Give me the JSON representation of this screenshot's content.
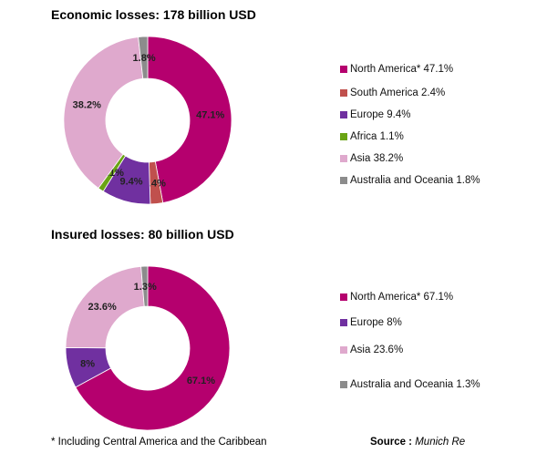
{
  "chart_data": [
    {
      "type": "pie",
      "title": "Economic losses: 178 billion USD",
      "slices": [
        {
          "label": "North America*",
          "value": 47.1,
          "display": "47.1%",
          "legend": "North America* 47.1%",
          "color": "#b5006e"
        },
        {
          "label": "South America",
          "value": 2.4,
          "display": "2.4%",
          "legend": "South America 2.4%",
          "color": "#c0504d"
        },
        {
          "label": "Europe",
          "value": 9.4,
          "display": "9.4%",
          "legend": "Europe 9.4%",
          "color": "#7030a0"
        },
        {
          "label": "Africa",
          "value": 1.1,
          "display": "1.1%",
          "legend": "Africa 1.1%",
          "color": "#6aa414"
        },
        {
          "label": "Asia",
          "value": 38.2,
          "display": "38.2%",
          "legend": "Asia 38.2%",
          "color": "#dfa9cd"
        },
        {
          "label": "Australia and Oceania",
          "value": 1.8,
          "display": "1.8%",
          "legend": "Australia and Oceania 1.8%",
          "color": "#8c8c8c"
        }
      ]
    },
    {
      "type": "pie",
      "title": "Insured losses: 80 billion USD",
      "slices": [
        {
          "label": "North America*",
          "value": 67.1,
          "display": "67.1%",
          "legend": "North America* 67.1%",
          "color": "#b5006e"
        },
        {
          "label": "Europe",
          "value": 8,
          "display": "8%",
          "legend": "Europe 8%",
          "color": "#7030a0"
        },
        {
          "label": "Asia",
          "value": 23.6,
          "display": "23.6%",
          "legend": "Asia 23.6%",
          "color": "#dfa9cd"
        },
        {
          "label": "Australia and Oceania",
          "value": 1.3,
          "display": "1.3%",
          "legend": "Australia and Oceania 1.3%",
          "color": "#8c8c8c"
        }
      ]
    }
  ],
  "footnote": "* Including Central America and the Caribbean",
  "source_label": "Source :",
  "source_value": "Munich Re"
}
